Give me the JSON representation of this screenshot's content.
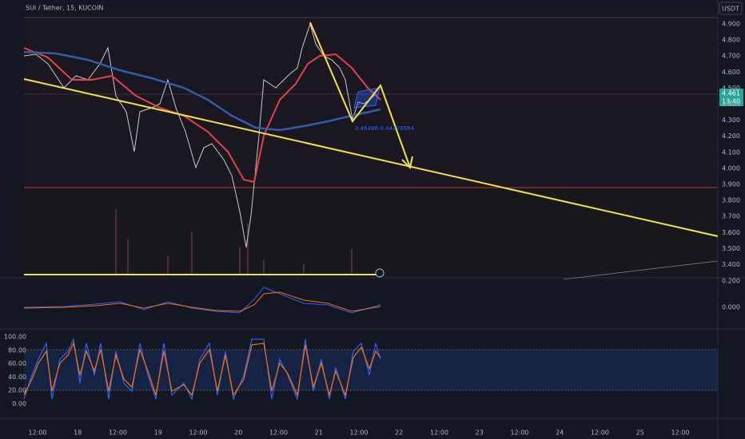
{
  "header": {
    "title": "SUI / Tether, 15, KUCOIN",
    "currency": "USDT"
  },
  "price_axis": {
    "labels": [
      "4.900",
      "4.800",
      "4.700",
      "4.600",
      "4.500",
      "4.400",
      "4.300",
      "4.200",
      "4.100",
      "4.000",
      "3.900",
      "3.800",
      "3.700",
      "3.600",
      "3.500",
      "3.400"
    ]
  },
  "current_price": {
    "value": "4.461",
    "countdown": "13:40"
  },
  "annotation": "0.46486-0.44329584",
  "macd_axis": {
    "labels": [
      "0.200",
      "0.000"
    ]
  },
  "stoch_axis": {
    "labels": [
      "100.00",
      "80.00",
      "60.00",
      "40.00",
      "20.00",
      "0.00"
    ]
  },
  "time_axis": {
    "labels": [
      "12:00",
      "18",
      "12:00",
      "19",
      "12:00",
      "20",
      "12:00",
      "21",
      "12:00",
      "22",
      "12:00",
      "23",
      "12:00",
      "24",
      "12:00",
      "25",
      "12:00"
    ]
  }
}
